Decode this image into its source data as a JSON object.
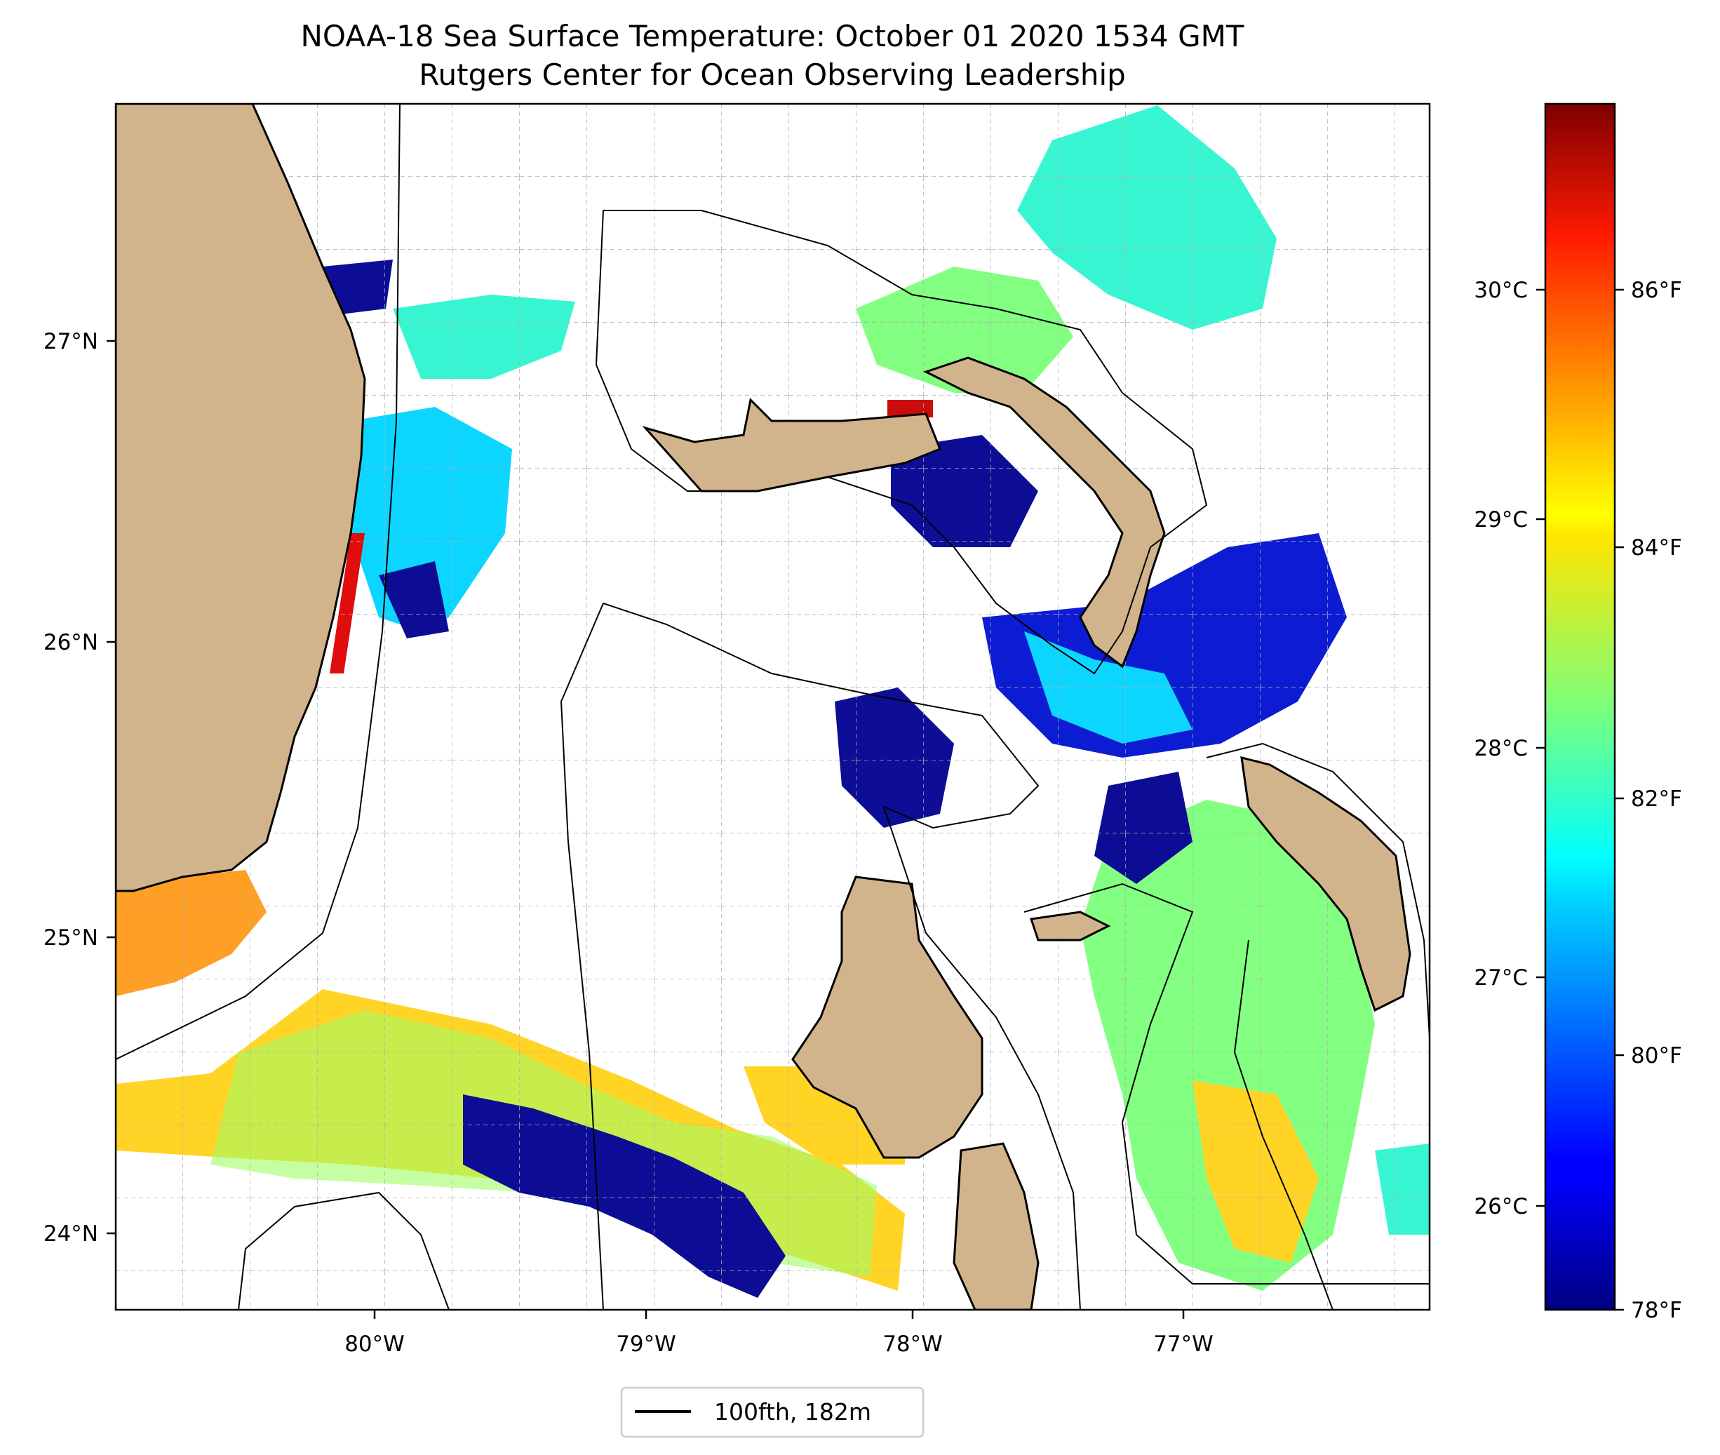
{
  "title": {
    "line1": "NOAA-18 Sea Surface Temperature: October 01 2020 1534 GMT",
    "line2": "Rutgers Center for Ocean Observing Leadership"
  },
  "map": {
    "lon_ticks": [
      "80°W",
      "79°W",
      "78°W",
      "77°W"
    ],
    "lat_ticks": [
      "27°N",
      "26°N",
      "25°N",
      "24°N"
    ],
    "land_color": "#d2b48c",
    "gridlines": true
  },
  "colorbar": {
    "colormap": "jet",
    "celsius_ticks": [
      "30°C",
      "29°C",
      "28°C",
      "27°C",
      "26°C"
    ],
    "fahrenheit_ticks": [
      "86°F",
      "84°F",
      "82°F",
      "80°F",
      "78°F"
    ],
    "range_f": [
      78,
      87.6
    ]
  },
  "legend": {
    "label": "100fth, 182m"
  }
}
